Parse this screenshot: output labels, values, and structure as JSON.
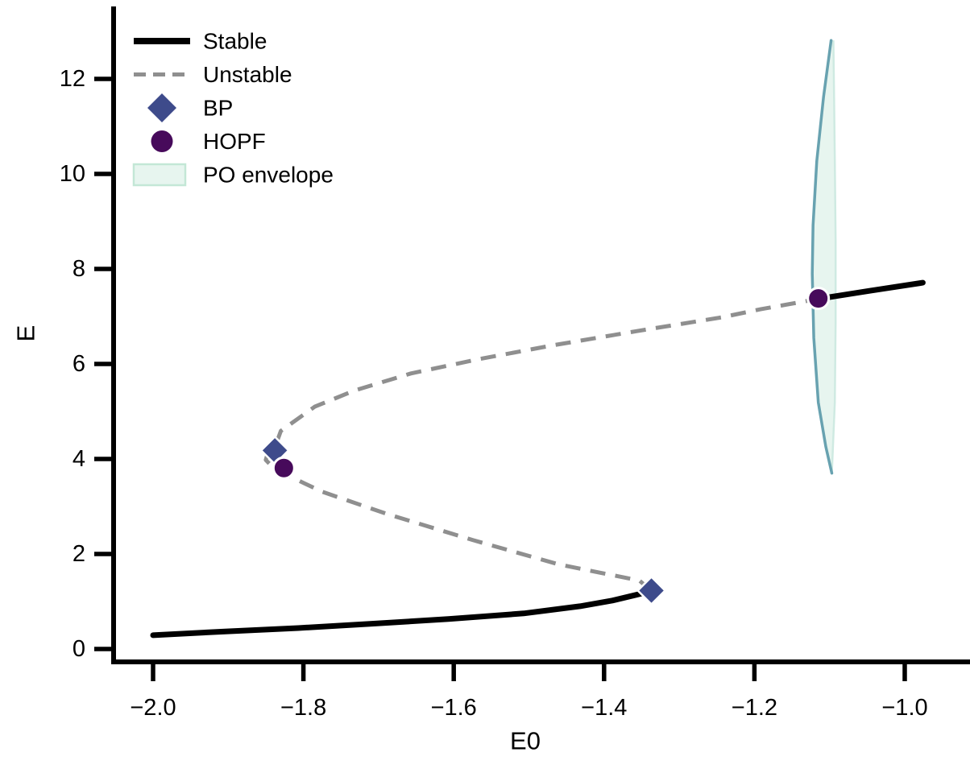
{
  "page": {
    "background": "#ffffff"
  },
  "colors": {
    "stable": "#000000",
    "unstable": "#8f8f8f",
    "bp": "#3e4b8b",
    "hopf": "#470a5b",
    "envelope_fill": "#e7f5ef",
    "envelope_edge": "#cfeae2",
    "envelope_line": "#68a2b0",
    "marker_edge": "#ffffff",
    "axis": "#000000"
  },
  "axes": {
    "xlabel": "E0",
    "ylabel": "E",
    "x_ticks": {
      "values": [
        -2.0,
        -1.8,
        -1.6,
        -1.4,
        -1.2,
        -1.0
      ],
      "labels": [
        "−2.0",
        "−1.8",
        "−1.6",
        "−1.4",
        "−1.2",
        "−1.0"
      ]
    },
    "y_ticks": {
      "values": [
        0,
        2,
        4,
        6,
        8,
        10,
        12
      ],
      "labels": [
        "0",
        "2",
        "4",
        "6",
        "8",
        "10",
        "12"
      ]
    }
  },
  "legend": {
    "position": "upper left",
    "items": [
      {
        "id": "stable",
        "label": "Stable",
        "type": "line",
        "style": "solid",
        "color": "#000000"
      },
      {
        "id": "unstable",
        "label": "Unstable",
        "type": "line",
        "style": "dashed",
        "color": "#8f8f8f"
      },
      {
        "id": "bp",
        "label": "BP",
        "type": "diamond",
        "color": "#3e4b8b"
      },
      {
        "id": "hopf",
        "label": "HOPF",
        "type": "circle",
        "color": "#470a5b"
      },
      {
        "id": "po-envelope",
        "label": "PO envelope",
        "type": "patch",
        "fill": "#e7f5ef",
        "edge": "#c3e7d6"
      }
    ]
  },
  "chart_data": {
    "type": "line",
    "title": "",
    "xlabel": "E0",
    "ylabel": "E",
    "xlim": [
      -2.05,
      -0.95
    ],
    "ylim": [
      -0.35,
      13.45
    ],
    "grid": false,
    "legend_position": "upper left",
    "x_tick_values": [
      -2.0,
      -1.8,
      -1.6,
      -1.4,
      -1.2,
      -1.0
    ],
    "y_tick_values": [
      0,
      2,
      4,
      6,
      8,
      10,
      12
    ],
    "series": [
      {
        "name": "Stable (lower branch)",
        "style": "solid",
        "color": "#000000",
        "points": [
          [
            -2.0,
            0.29
          ],
          [
            -1.904,
            0.37
          ],
          [
            -1.807,
            0.44
          ],
          [
            -1.711,
            0.53
          ],
          [
            -1.607,
            0.63
          ],
          [
            -1.507,
            0.75
          ],
          [
            -1.432,
            0.9
          ],
          [
            -1.389,
            1.02
          ],
          [
            -1.357,
            1.14
          ],
          [
            -1.337,
            1.22
          ]
        ]
      },
      {
        "name": "Unstable (middle branch)",
        "style": "dashed",
        "color": "#8f8f8f",
        "points": [
          [
            -1.337,
            1.22
          ],
          [
            -1.353,
            1.44
          ],
          [
            -1.46,
            1.78
          ],
          [
            -1.574,
            2.29
          ],
          [
            -1.69,
            2.85
          ],
          [
            -1.775,
            3.31
          ],
          [
            -1.815,
            3.61
          ],
          [
            -1.842,
            3.85
          ],
          [
            -1.85,
            3.98
          ],
          [
            -1.847,
            4.14
          ],
          [
            -1.838,
            4.24
          ],
          [
            -1.83,
            4.59
          ],
          [
            -1.785,
            5.1
          ],
          [
            -1.732,
            5.44
          ],
          [
            -1.657,
            5.8
          ],
          [
            -1.567,
            6.1
          ],
          [
            -1.469,
            6.39
          ],
          [
            -1.357,
            6.69
          ],
          [
            -1.244,
            6.98
          ],
          [
            -1.192,
            7.15
          ],
          [
            -1.115,
            7.37
          ]
        ]
      },
      {
        "name": "Stable (upper branch)",
        "style": "solid",
        "color": "#000000",
        "points": [
          [
            -1.115,
            7.37
          ],
          [
            -1.046,
            7.54
          ],
          [
            -0.976,
            7.71
          ]
        ]
      }
    ],
    "markers": [
      {
        "name": "BP",
        "shape": "diamond",
        "color": "#3e4b8b",
        "points": [
          [
            -1.838,
            4.18
          ],
          [
            -1.337,
            1.23
          ]
        ]
      },
      {
        "name": "HOPF",
        "shape": "circle",
        "color": "#470a5b",
        "points": [
          [
            -1.826,
            3.81
          ],
          [
            -1.115,
            7.38
          ]
        ]
      }
    ],
    "po_envelope": {
      "x_range": [
        -1.123,
        -1.092
      ],
      "E_range": [
        3.7,
        12.81
      ],
      "left_edge": [
        [
          -1.098,
          12.81
        ],
        [
          -1.108,
          11.62
        ],
        [
          -1.117,
          10.27
        ],
        [
          -1.122,
          8.92
        ],
        [
          -1.123,
          7.9
        ],
        [
          -1.121,
          6.55
        ],
        [
          -1.115,
          5.19
        ],
        [
          -1.105,
          4.26
        ],
        [
          -1.097,
          3.7
        ]
      ],
      "right_edge": [
        [
          -1.097,
          3.7
        ],
        [
          -1.093,
          5.19
        ],
        [
          -1.092,
          6.88
        ],
        [
          -1.092,
          8.58
        ],
        [
          -1.093,
          10.27
        ],
        [
          -1.094,
          11.62
        ],
        [
          -1.095,
          12.81
        ]
      ]
    }
  }
}
